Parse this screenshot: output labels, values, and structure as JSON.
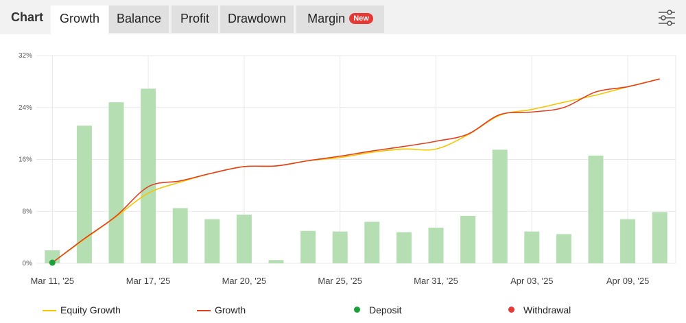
{
  "tabs": {
    "title": "Chart",
    "items": [
      {
        "label": "Growth",
        "active": true
      },
      {
        "label": "Balance",
        "active": false
      },
      {
        "label": "Profit",
        "active": false
      },
      {
        "label": "Drawdown",
        "active": false
      },
      {
        "label": "Margin",
        "active": false
      }
    ],
    "badge": "New",
    "settings_icon": "sliders-icon"
  },
  "colors": {
    "bars": "#b5deb3",
    "equity_growth": "#f5c400",
    "growth": "#e0401f",
    "deposit": "#1a9f3a",
    "withdrawal": "#e53935",
    "grid": "#e8e8e8"
  },
  "legend": [
    {
      "label": "Equity Growth",
      "kind": "line",
      "color": "#f5c400"
    },
    {
      "label": "Growth",
      "kind": "line",
      "color": "#e0401f"
    },
    {
      "label": "Deposit",
      "kind": "dot",
      "color": "#1a9f3a"
    },
    {
      "label": "Withdrawal",
      "kind": "dot",
      "color": "#e53935"
    }
  ],
  "chart_data": {
    "type": "bar",
    "y_tick_labels": [
      "0%",
      "8%",
      "16%",
      "24%",
      "32%"
    ],
    "ylim": [
      0,
      32
    ],
    "x_tick_labels": [
      "Mar 11, '25",
      "Mar 17, '25",
      "Mar 20, '25",
      "Mar 25, '25",
      "Mar 31, '25",
      "Apr 03, '25",
      "Apr 09, '25"
    ],
    "x_tick_bar_index": [
      0,
      3,
      6,
      9,
      12,
      15,
      18
    ],
    "grid": true,
    "legend_position": "bottom",
    "bars": [
      2.0,
      21.2,
      24.8,
      26.9,
      8.5,
      6.8,
      7.5,
      0.5,
      5.0,
      4.9,
      6.4,
      4.8,
      5.5,
      7.3,
      17.5,
      4.9,
      4.5,
      16.6,
      6.8,
      7.9
    ],
    "series": [
      {
        "name": "Equity Growth",
        "values": [
          0.1,
          3.7,
          7.2,
          10.8,
          12.5,
          13.9,
          14.9,
          15.0,
          15.8,
          16.3,
          17.1,
          17.6,
          17.6,
          19.8,
          22.8,
          23.7,
          24.8,
          25.9,
          27.2,
          28.4
        ]
      },
      {
        "name": "Growth",
        "values": [
          0.1,
          3.8,
          7.3,
          11.8,
          12.7,
          13.9,
          14.9,
          15.0,
          15.8,
          16.5,
          17.3,
          18.0,
          18.8,
          19.9,
          22.9,
          23.3,
          24.0,
          26.4,
          27.2,
          28.4
        ]
      },
      {
        "name": "Deposit",
        "values": [
          0.1
        ]
      }
    ]
  }
}
